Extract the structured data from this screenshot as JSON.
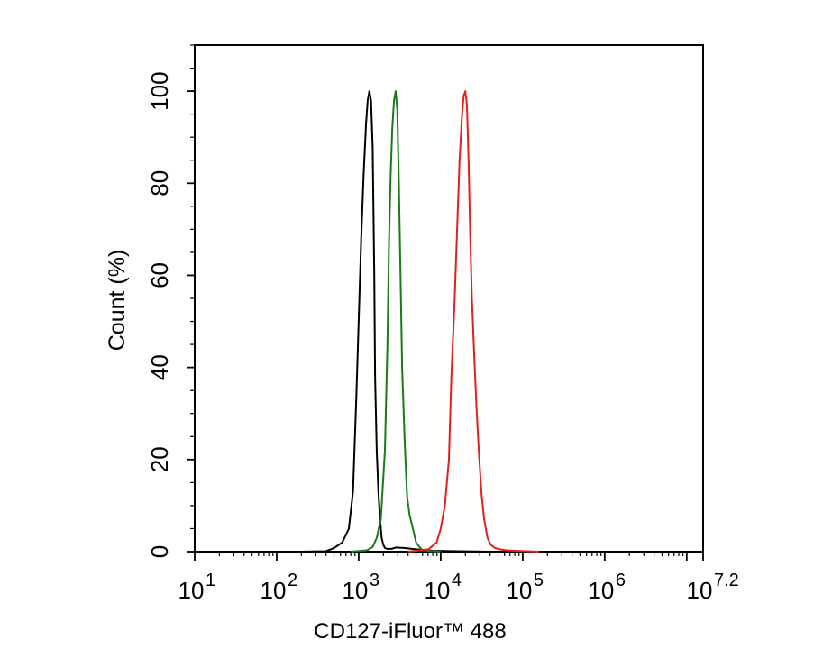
{
  "chart_data": {
    "type": "line",
    "title": "",
    "xlabel": "CD127-iFluor™ 488",
    "ylabel": "Count  (%)",
    "x_scale": "log10",
    "xlim": [
      1,
      7.2
    ],
    "ylim": [
      0,
      110
    ],
    "x_ticks": [
      {
        "base": "10",
        "exp": "1",
        "value": 1
      },
      {
        "base": "10",
        "exp": "2",
        "value": 2
      },
      {
        "base": "10",
        "exp": "3",
        "value": 3
      },
      {
        "base": "10",
        "exp": "4",
        "value": 4
      },
      {
        "base": "10",
        "exp": "5",
        "value": 5
      },
      {
        "base": "10",
        "exp": "6",
        "value": 6
      },
      {
        "base": "10",
        "exp": "7.2",
        "value": 7.2
      }
    ],
    "y_ticks": [
      "0",
      "20",
      "40",
      "60",
      "80",
      "100"
    ],
    "grid": false,
    "legend": "none",
    "series": [
      {
        "color": "#000000",
        "x": [
          2.3,
          2.6,
          2.7,
          2.8,
          2.88,
          2.93,
          2.97,
          3.0,
          3.03,
          3.06,
          3.09,
          3.11,
          3.13,
          3.15,
          3.17,
          3.19,
          3.2,
          3.22,
          3.24,
          3.26,
          3.28,
          3.3,
          3.32,
          3.35,
          3.4,
          3.45,
          3.55,
          3.7,
          3.9,
          4.2,
          4.6
        ],
        "y": [
          0,
          0.1,
          0.8,
          2,
          5,
          13,
          33,
          50,
          68,
          82,
          93,
          98,
          100,
          98,
          88,
          60,
          38,
          22,
          13,
          7,
          3,
          1.5,
          0.8,
          0.6,
          0.6,
          0.9,
          0.8,
          0.5,
          0.2,
          0.1,
          0
        ]
      },
      {
        "color": "#1a7a1a",
        "x": [
          2.9,
          3.1,
          3.17,
          3.22,
          3.27,
          3.32,
          3.35,
          3.37,
          3.39,
          3.41,
          3.43,
          3.45,
          3.47,
          3.49,
          3.51,
          3.53,
          3.56,
          3.59,
          3.62,
          3.66,
          3.7,
          3.74,
          3.78,
          3.82,
          3.88,
          4.0
        ],
        "y": [
          0,
          0.3,
          1,
          3,
          7,
          22,
          45,
          68,
          82,
          92,
          98,
          100,
          96,
          80,
          60,
          40,
          24,
          12,
          8,
          5,
          2,
          1,
          0.3,
          0.3,
          0.1,
          0
        ]
      },
      {
        "color": "#e02020",
        "x": [
          3.6,
          3.85,
          3.95,
          4.0,
          4.05,
          4.1,
          4.13,
          4.17,
          4.2,
          4.23,
          4.26,
          4.28,
          4.3,
          4.32,
          4.34,
          4.36,
          4.38,
          4.41,
          4.44,
          4.47,
          4.5,
          4.53,
          4.57,
          4.61,
          4.66,
          4.72,
          4.8,
          4.9,
          5.05,
          5.2
        ],
        "y": [
          0,
          0.5,
          2,
          5,
          10,
          20,
          38,
          55,
          70,
          85,
          95,
          99,
          100,
          97,
          85,
          68,
          55,
          42,
          30,
          20,
          12,
          7,
          3,
          1.5,
          0.8,
          0.5,
          0.3,
          0.2,
          0.1,
          0
        ]
      }
    ]
  }
}
